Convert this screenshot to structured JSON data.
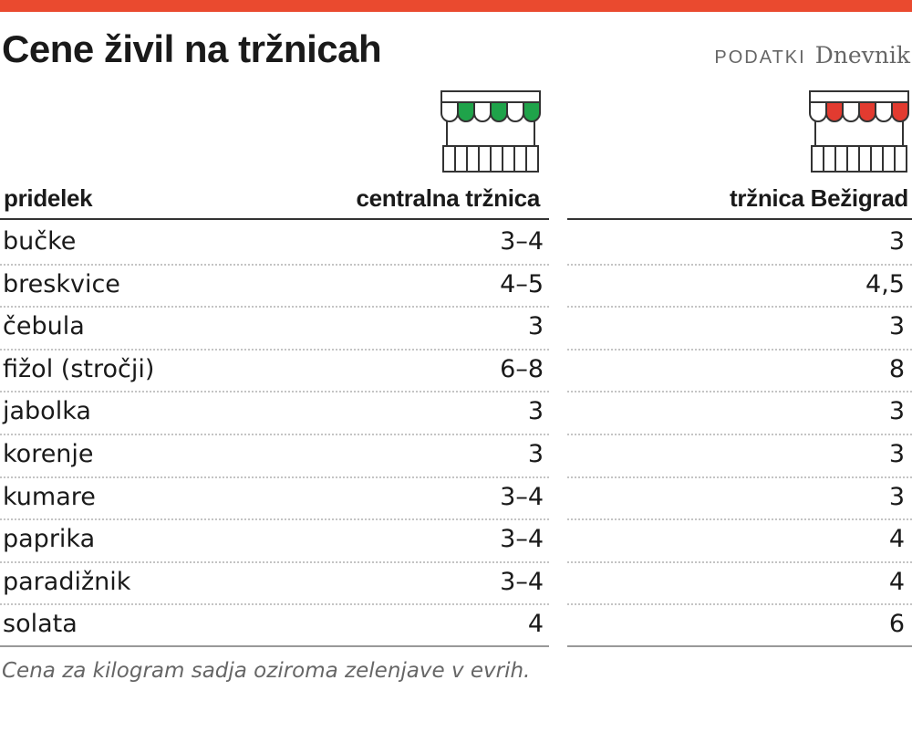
{
  "colors": {
    "accent": "#ea4a2f",
    "central_stall": "#1fa34a",
    "bezigrad_stall": "#e23b30"
  },
  "header": {
    "title": "Cene živil na tržnicah",
    "source_label": "PODATKI",
    "brand": "Dnevnik"
  },
  "icons": {
    "central": "market-stall-green-icon",
    "bezigrad": "market-stall-red-icon"
  },
  "chart_data": {
    "type": "table",
    "columns": [
      "pridelek",
      "centralna tržnica",
      "tržnica Bežigrad"
    ],
    "rows": [
      [
        "bučke",
        "3–4",
        "3"
      ],
      [
        "breskvice",
        "4–5",
        "4,5"
      ],
      [
        "čebula",
        "3",
        "3"
      ],
      [
        "fižol (stročji)",
        "6–8",
        "8"
      ],
      [
        "jabolka",
        "3",
        "3"
      ],
      [
        "korenje",
        "3",
        "3"
      ],
      [
        "kumare",
        "3–4",
        "3"
      ],
      [
        "paprika",
        "3–4",
        "4"
      ],
      [
        "paradižnik",
        "3–4",
        "4"
      ],
      [
        "solata",
        "4",
        "6"
      ]
    ]
  },
  "footnote": "Cena za kilogram sadja oziroma zelenjave v evrih."
}
